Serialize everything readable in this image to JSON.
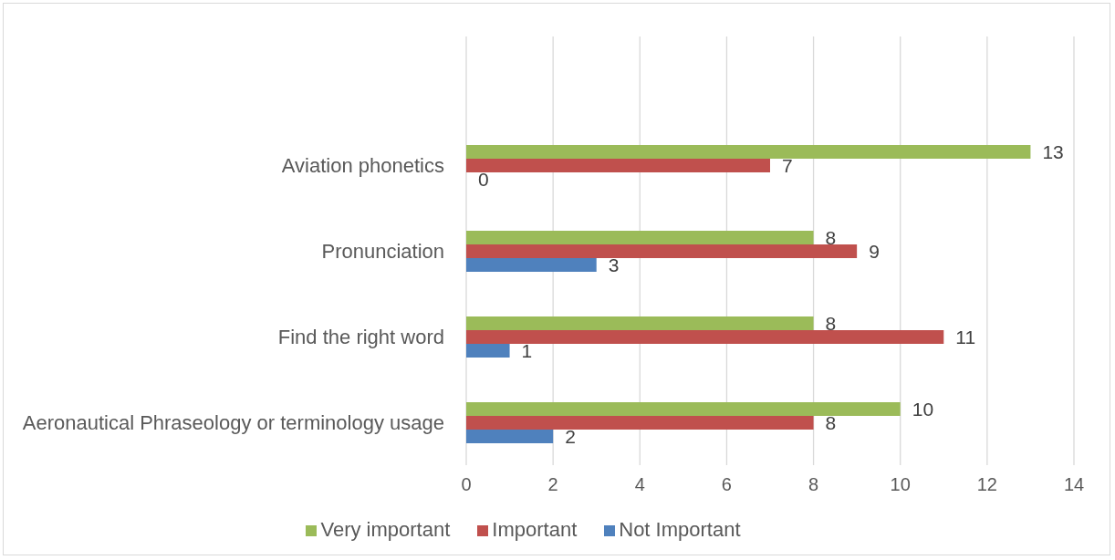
{
  "chart_data": {
    "type": "bar",
    "orientation": "horizontal",
    "categories": [
      null,
      "Aviation phonetics",
      "Pronunciation",
      "Find the right word",
      "Aeronautical Phraseology or terminology usage"
    ],
    "series": [
      {
        "name": "Very important",
        "color": "#9bbb59",
        "values": [
          null,
          13,
          8,
          8,
          10
        ]
      },
      {
        "name": "Important",
        "color": "#c0504d",
        "values": [
          null,
          7,
          9,
          11,
          8
        ]
      },
      {
        "name": "Not Important",
        "color": "#4f81bd",
        "values": [
          null,
          0,
          3,
          1,
          2
        ]
      }
    ],
    "xlim": [
      0,
      14
    ],
    "xticks": [
      0,
      2,
      4,
      6,
      8,
      10,
      12,
      14
    ],
    "grid": "x",
    "legend": "bottom",
    "data_labels": true
  }
}
